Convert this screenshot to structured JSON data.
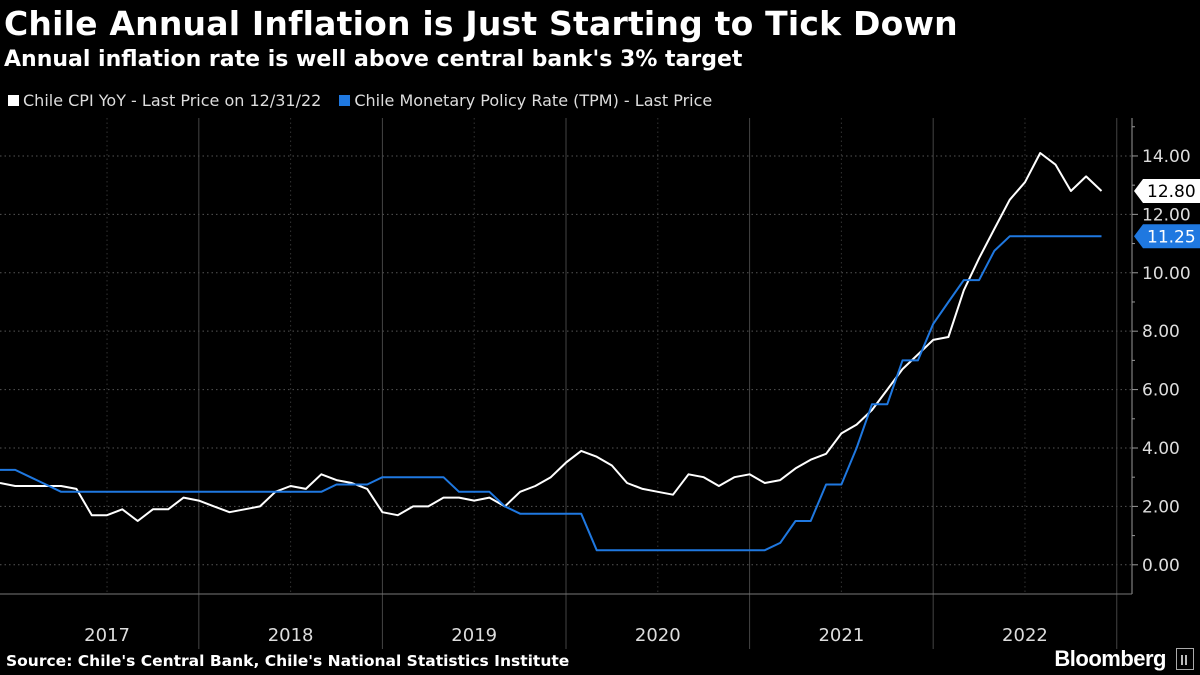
{
  "chart_data": {
    "type": "line",
    "title": "Chile Annual Inflation is Just Starting to Tick Down",
    "subtitle": "Annual inflation rate is well above central bank's 3% target",
    "xlabel": "",
    "ylabel": "",
    "ylim": [
      -1,
      15.3
    ],
    "y_ticks": [
      "0.00",
      "2.00",
      "4.00",
      "6.00",
      "8.00",
      "10.00",
      "12.00",
      "14.00"
    ],
    "x_years": [
      "2017",
      "2018",
      "2019",
      "2020",
      "2021",
      "2022"
    ],
    "x_start": 2016.917,
    "x_end": 2023.083,
    "source": "Source: Chile's Central Bank, Chile's National Statistics Institute",
    "brand": "Bloomberg",
    "colors": {
      "cpi": "#ffffff",
      "tpm": "#1f78e0",
      "grid": "#555555",
      "background": "#000000"
    },
    "series": [
      {
        "name": "Chile CPI YoY - Last Price on 12/31/22",
        "key": "cpi",
        "last_label": "12.80",
        "points": [
          [
            2016.917,
            2.8
          ],
          [
            2017.0,
            2.7
          ],
          [
            2017.083,
            2.7
          ],
          [
            2017.167,
            2.7
          ],
          [
            2017.25,
            2.7
          ],
          [
            2017.333,
            2.6
          ],
          [
            2017.417,
            1.7
          ],
          [
            2017.5,
            1.7
          ],
          [
            2017.583,
            1.9
          ],
          [
            2017.667,
            1.5
          ],
          [
            2017.75,
            1.9
          ],
          [
            2017.833,
            1.9
          ],
          [
            2017.917,
            2.3
          ],
          [
            2018.0,
            2.2
          ],
          [
            2018.083,
            2.0
          ],
          [
            2018.167,
            1.8
          ],
          [
            2018.25,
            1.9
          ],
          [
            2018.333,
            2.0
          ],
          [
            2018.417,
            2.5
          ],
          [
            2018.5,
            2.7
          ],
          [
            2018.583,
            2.6
          ],
          [
            2018.667,
            3.1
          ],
          [
            2018.75,
            2.9
          ],
          [
            2018.833,
            2.8
          ],
          [
            2018.917,
            2.6
          ],
          [
            2019.0,
            1.8
          ],
          [
            2019.083,
            1.7
          ],
          [
            2019.167,
            2.0
          ],
          [
            2019.25,
            2.0
          ],
          [
            2019.333,
            2.3
          ],
          [
            2019.417,
            2.3
          ],
          [
            2019.5,
            2.2
          ],
          [
            2019.583,
            2.3
          ],
          [
            2019.667,
            2.0
          ],
          [
            2019.75,
            2.5
          ],
          [
            2019.833,
            2.7
          ],
          [
            2019.917,
            3.0
          ],
          [
            2020.0,
            3.5
          ],
          [
            2020.083,
            3.9
          ],
          [
            2020.167,
            3.7
          ],
          [
            2020.25,
            3.4
          ],
          [
            2020.333,
            2.8
          ],
          [
            2020.417,
            2.6
          ],
          [
            2020.5,
            2.5
          ],
          [
            2020.583,
            2.4
          ],
          [
            2020.667,
            3.1
          ],
          [
            2020.75,
            3.0
          ],
          [
            2020.833,
            2.7
          ],
          [
            2020.917,
            3.0
          ],
          [
            2021.0,
            3.1
          ],
          [
            2021.083,
            2.8
          ],
          [
            2021.167,
            2.9
          ],
          [
            2021.25,
            3.3
          ],
          [
            2021.333,
            3.6
          ],
          [
            2021.417,
            3.8
          ],
          [
            2021.5,
            4.5
          ],
          [
            2021.583,
            4.8
          ],
          [
            2021.667,
            5.3
          ],
          [
            2021.75,
            6.0
          ],
          [
            2021.833,
            6.7
          ],
          [
            2021.917,
            7.2
          ],
          [
            2022.0,
            7.7
          ],
          [
            2022.083,
            7.8
          ],
          [
            2022.167,
            9.4
          ],
          [
            2022.25,
            10.5
          ],
          [
            2022.333,
            11.5
          ],
          [
            2022.417,
            12.5
          ],
          [
            2022.5,
            13.1
          ],
          [
            2022.583,
            14.1
          ],
          [
            2022.667,
            13.7
          ],
          [
            2022.75,
            12.8
          ],
          [
            2022.833,
            13.3
          ],
          [
            2022.917,
            12.8
          ]
        ]
      },
      {
        "name": "Chile Monetary Policy Rate (TPM) - Last Price",
        "key": "tpm",
        "last_label": "11.25",
        "points": [
          [
            2016.917,
            3.25
          ],
          [
            2017.0,
            3.25
          ],
          [
            2017.083,
            3.0
          ],
          [
            2017.167,
            2.75
          ],
          [
            2017.25,
            2.5
          ],
          [
            2017.333,
            2.5
          ],
          [
            2018.583,
            2.5
          ],
          [
            2018.667,
            2.5
          ],
          [
            2018.75,
            2.75
          ],
          [
            2018.917,
            2.75
          ],
          [
            2019.0,
            3.0
          ],
          [
            2019.333,
            3.0
          ],
          [
            2019.417,
            2.5
          ],
          [
            2019.583,
            2.5
          ],
          [
            2019.667,
            2.0
          ],
          [
            2019.75,
            1.75
          ],
          [
            2020.083,
            1.75
          ],
          [
            2020.167,
            0.5
          ],
          [
            2021.0,
            0.5
          ],
          [
            2021.083,
            0.5
          ],
          [
            2021.167,
            0.75
          ],
          [
            2021.25,
            1.5
          ],
          [
            2021.333,
            1.5
          ],
          [
            2021.417,
            2.75
          ],
          [
            2021.5,
            2.75
          ],
          [
            2021.583,
            4.0
          ],
          [
            2021.667,
            5.5
          ],
          [
            2021.75,
            5.5
          ],
          [
            2021.833,
            7.0
          ],
          [
            2021.917,
            7.0
          ],
          [
            2022.0,
            8.25
          ],
          [
            2022.083,
            9.0
          ],
          [
            2022.167,
            9.75
          ],
          [
            2022.25,
            9.75
          ],
          [
            2022.333,
            10.75
          ],
          [
            2022.417,
            11.25
          ],
          [
            2022.5,
            11.25
          ],
          [
            2022.583,
            11.25
          ],
          [
            2022.667,
            11.25
          ],
          [
            2022.75,
            11.25
          ],
          [
            2022.833,
            11.25
          ],
          [
            2022.917,
            11.25
          ]
        ]
      }
    ]
  }
}
